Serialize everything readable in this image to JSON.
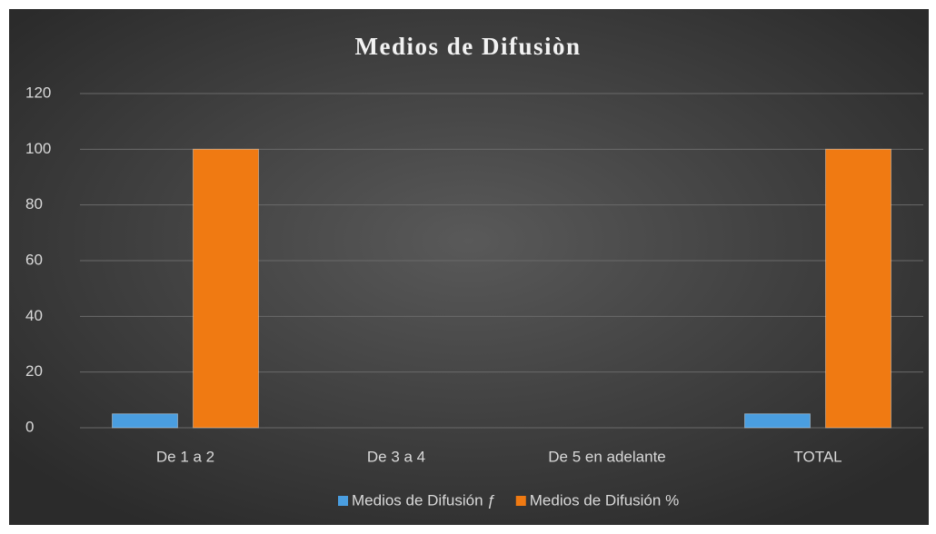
{
  "chart_data": {
    "type": "bar",
    "title": "Medios de Difusiòn",
    "categories": [
      "De 1 a 2",
      "De 3 a 4",
      "De 5 en adelante",
      "TOTAL"
    ],
    "series": [
      {
        "name": "Medios de Difusión ƒ",
        "color": "#4a9ee0",
        "values": [
          5,
          0,
          0,
          5
        ]
      },
      {
        "name": "Medios de Difusión %",
        "color": "#f07a12",
        "values": [
          100,
          0,
          0,
          100
        ]
      }
    ],
    "ylim": [
      0,
      120
    ],
    "yticks": [
      0,
      20,
      40,
      60,
      80,
      100,
      120
    ],
    "grid": true,
    "legend": "bottom"
  }
}
